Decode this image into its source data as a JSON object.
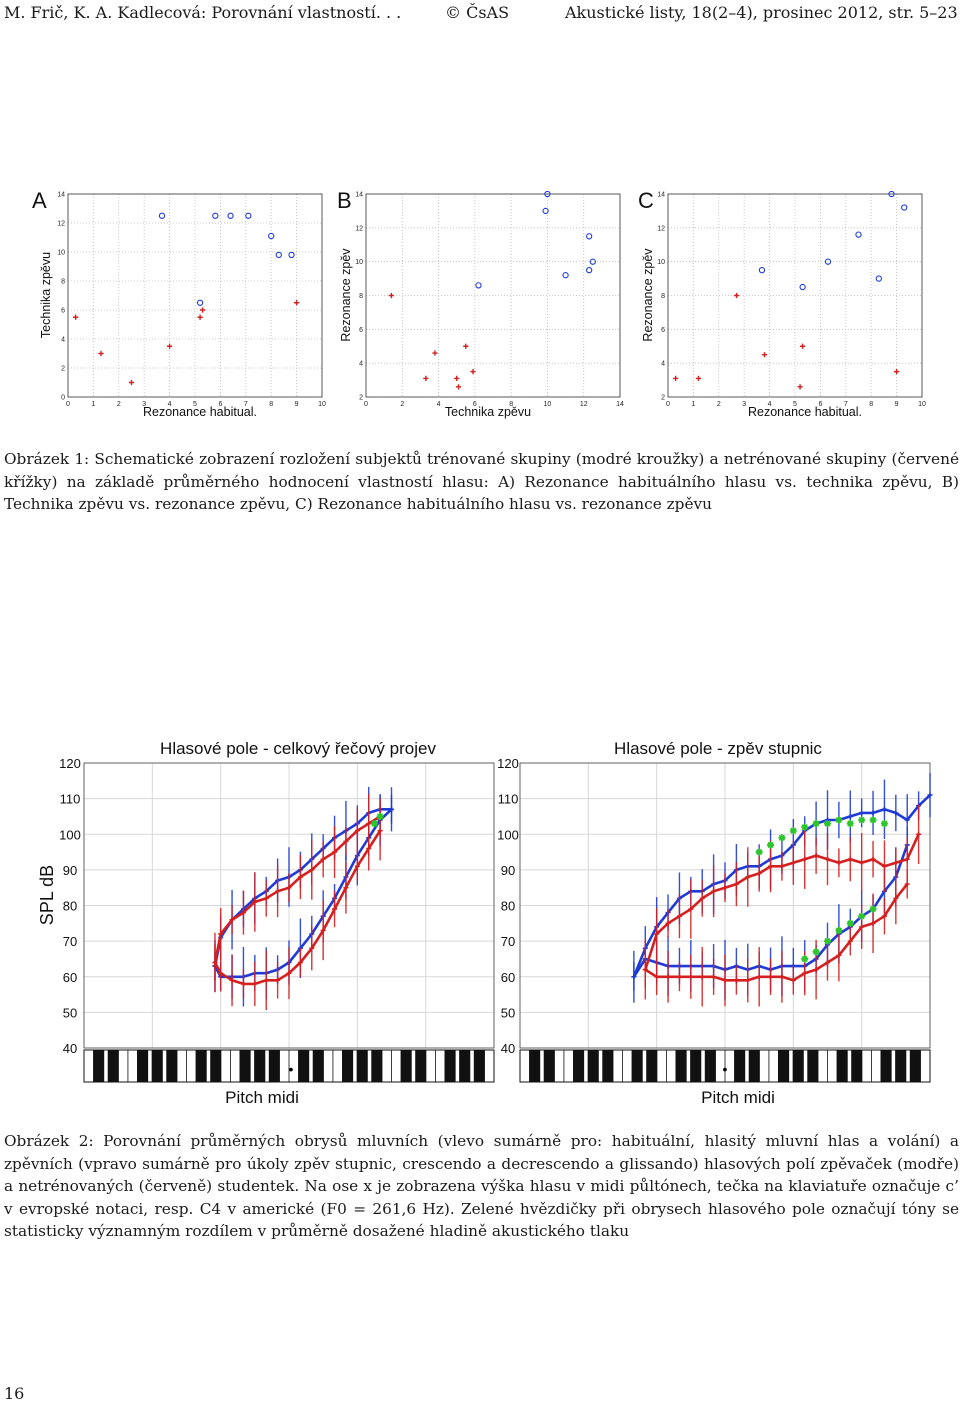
{
  "header": {
    "authors_title": "M. Frič, K. A. Kadlecová: Porovnání vlastností. . .",
    "copyright": "© ČsAS",
    "journal": "Akustické listy, 18(2–4), prosinec 2012, str. 5–23"
  },
  "figure1": {
    "colors": {
      "trained": "#1f3bd6",
      "untrained": "#d42020"
    },
    "caption": "Obrázek 1: Schematické zobrazení rozložení subjektů trénované skupiny (modré kroužky) a netrénované skupiny (červené křížky) na základě průměrného hodnocení vlastností hlasu: A) Rezonance habituálního hlasu vs. technika zpěvu, B) Technika zpěvu vs. rezonance zpěvu, C) Rezonance habituálního hlasu vs. rezonance zpěvu",
    "chart_data": [
      {
        "type": "scatter",
        "panel": "A",
        "xlabel": "Rezonance habitual.",
        "ylabel": "Technika zpěvu",
        "xlim": [
          0,
          10
        ],
        "ylim": [
          0,
          14
        ],
        "xticks": [
          "0",
          "1",
          "2",
          "3",
          "4",
          "5",
          "6",
          "7",
          "8",
          "9",
          "10"
        ],
        "yticks": [
          "0",
          "2",
          "4",
          "6",
          "8",
          "10",
          "12",
          "14"
        ],
        "series": [
          {
            "name": "trénovaní",
            "marker": "circle",
            "x": [
              3.7,
              6.4,
              5.2,
              8.0,
              8.3,
              8.8,
              7.1,
              5.8
            ],
            "y": [
              12.5,
              12.5,
              6.5,
              11.1,
              9.8,
              9.8,
              12.5,
              12.5
            ]
          },
          {
            "name": "netrénovaní",
            "marker": "cross",
            "x": [
              0.3,
              1.3,
              2.5,
              4.0,
              5.2,
              5.3,
              9.0
            ],
            "y": [
              5.5,
              3.0,
              1.0,
              3.5,
              5.5,
              6.0,
              6.5
            ]
          }
        ]
      },
      {
        "type": "scatter",
        "panel": "B",
        "xlabel": "Technika zpěvu",
        "ylabel": "Rezonance zpěv",
        "xlim": [
          0,
          14
        ],
        "ylim": [
          2,
          14
        ],
        "xticks": [
          "0",
          "2",
          "4",
          "6",
          "8",
          "10",
          "12",
          "14"
        ],
        "yticks": [
          "2",
          "4",
          "6",
          "8",
          "10",
          "12",
          "14"
        ],
        "series": [
          {
            "name": "trénovaní",
            "marker": "circle",
            "x": [
              10.0,
              9.9,
              6.2,
              11.0,
              12.3,
              12.5,
              12.3
            ],
            "y": [
              14.0,
              13.0,
              8.6,
              9.2,
              11.5,
              10.0,
              9.5
            ]
          },
          {
            "name": "netrénovaní",
            "marker": "cross",
            "x": [
              1.4,
              3.8,
              3.3,
              5.0,
              5.1,
              5.5,
              5.9
            ],
            "y": [
              8.0,
              4.6,
              3.1,
              3.1,
              2.6,
              5.0,
              3.5
            ]
          }
        ]
      },
      {
        "type": "scatter",
        "panel": "C",
        "xlabel": "Rezonance habitual.",
        "ylabel": "Rezonance zpěv",
        "xlim": [
          0,
          10
        ],
        "ylim": [
          2,
          14
        ],
        "xticks": [
          "0",
          "1",
          "2",
          "3",
          "4",
          "5",
          "6",
          "7",
          "8",
          "9",
          "10"
        ],
        "yticks": [
          "2",
          "4",
          "6",
          "8",
          "10",
          "12",
          "14"
        ],
        "series": [
          {
            "name": "trénovaní",
            "marker": "circle",
            "x": [
              8.8,
              9.3,
              7.5,
              6.3,
              5.3,
              3.7,
              8.3
            ],
            "y": [
              14.0,
              13.2,
              11.6,
              10.0,
              8.5,
              9.5,
              9.0
            ]
          },
          {
            "name": "netrénovaní",
            "marker": "cross",
            "x": [
              0.3,
              1.2,
              2.7,
              3.8,
              5.3,
              5.2,
              9.0
            ],
            "y": [
              3.1,
              3.1,
              8.0,
              4.5,
              5.0,
              2.6,
              3.5
            ]
          }
        ]
      }
    ]
  },
  "figure2": {
    "colors": {
      "trained": "#1f3bd6",
      "untrained": "#d42020",
      "significant": "#2ec42e"
    },
    "caption": "Obrázek 2: Porovnání průměrných obrysů mluvních (vlevo sumárně pro: habituální, hlasitý mluvní hlas a volání) a zpěvních (vpravo sumárně pro úkoly zpěv stupnic, crescendo a decrescendo a glissando) hlasových polí zpěvaček (modře) a netrénovaných (červeně) studentek. Na ose x je zobrazena výška hlasu v midi půltónech, tečka na klaviatuře označuje c’ v evropské notaci, resp. C4 v americké (F0 = 261,6 Hz). Zelené hvězdičky při obrysech hlasového pole označují tóny se statisticky významným rozdílem v průměrně dosažené hladině akustického tlaku",
    "chart_data": [
      {
        "type": "line",
        "title": "Hlasové pole - celkový řečový projev",
        "xlabel": "Pitch midi",
        "ylabel": "SPL dB",
        "ylim": [
          40,
          120
        ],
        "yticks": [
          "40",
          "50",
          "60",
          "70",
          "80",
          "90",
          "100",
          "110",
          "120"
        ],
        "xlim": [
          0,
          36
        ],
        "series": [
          {
            "name": "trénovaní – horní obrys",
            "x": [
              11.5,
              12,
              13,
              14,
              15,
              16,
              17,
              18,
              19,
              20,
              21,
              22,
              23,
              24,
              25,
              26,
              27
            ],
            "y": [
              63,
              71,
              76,
              79,
              82,
              84,
              87,
              88,
              90,
              93,
              96,
              99,
              101,
              103,
              106,
              107,
              107
            ]
          },
          {
            "name": "trénovaní – dolní obrys",
            "x": [
              11.5,
              12,
              13,
              14,
              15,
              16,
              17,
              18,
              19,
              20,
              21,
              22,
              23,
              24,
              25,
              26,
              27
            ],
            "y": [
              63,
              60,
              60,
              60,
              61,
              61,
              62,
              64,
              68,
              72,
              77,
              82,
              88,
              94,
              99,
              104,
              107
            ]
          },
          {
            "name": "netrénovaní – horní obrys",
            "x": [
              11.5,
              12,
              13,
              14,
              15,
              16,
              17,
              18,
              19,
              20,
              21,
              22,
              23,
              24,
              25,
              26
            ],
            "y": [
              64,
              72,
              76,
              78,
              81,
              82,
              84,
              85,
              88,
              90,
              93,
              95,
              98,
              101,
              103,
              105
            ]
          },
          {
            "name": "netrénovaní – dolní obrys",
            "x": [
              11.5,
              12,
              13,
              14,
              15,
              16,
              17,
              18,
              19,
              20,
              21,
              22,
              23,
              24,
              25,
              26
            ],
            "y": [
              64,
              61,
              59,
              58,
              58,
              59,
              59,
              61,
              64,
              68,
              73,
              79,
              85,
              91,
              96,
              101
            ]
          }
        ],
        "significant": {
          "x": [
            25.5,
            26
          ],
          "y": [
            103,
            105
          ]
        }
      },
      {
        "type": "line",
        "title": "Hlasové pole - zpěv stupnic",
        "xlabel": "Pitch midi",
        "ylabel": "",
        "ylim": [
          40,
          120
        ],
        "yticks": [
          "40",
          "50",
          "60",
          "70",
          "80",
          "90",
          "100",
          "110",
          "120"
        ],
        "xlim": [
          0,
          36
        ],
        "series": [
          {
            "name": "trénovaní – horní obrys",
            "x": [
              10,
              11,
              12,
              13,
              14,
              15,
              16,
              17,
              18,
              19,
              20,
              21,
              22,
              23,
              24,
              25,
              26,
              27,
              28,
              29,
              30,
              31,
              32,
              33,
              34,
              35,
              36
            ],
            "y": [
              60,
              68,
              74,
              78,
              82,
              84,
              84,
              86,
              87,
              90,
              91,
              91,
              93,
              94,
              97,
              101,
              103,
              104,
              104,
              105,
              106,
              106,
              107,
              106,
              104,
              108,
              111
            ]
          },
          {
            "name": "trénovaní – dolní obrys",
            "x": [
              10,
              11,
              12,
              13,
              14,
              15,
              16,
              17,
              18,
              19,
              20,
              21,
              22,
              23,
              24,
              25,
              26,
              27,
              28,
              29,
              30,
              31,
              32,
              33,
              34
            ],
            "y": [
              60,
              65,
              64,
              63,
              63,
              63,
              63,
              63,
              62,
              63,
              62,
              63,
              62,
              63,
              63,
              63,
              65,
              69,
              72,
              74,
              77,
              79,
              84,
              88,
              97
            ]
          },
          {
            "name": "netrénovaní – horní obrys",
            "x": [
              11,
              12,
              13,
              14,
              15,
              16,
              17,
              18,
              19,
              20,
              21,
              22,
              23,
              24,
              25,
              26,
              27,
              28,
              29,
              30,
              31,
              32,
              33,
              34,
              35
            ],
            "y": [
              62,
              72,
              75,
              77,
              79,
              82,
              84,
              85,
              86,
              88,
              89,
              91,
              91,
              92,
              93,
              94,
              93,
              92,
              93,
              92,
              93,
              91,
              92,
              93,
              100
            ]
          },
          {
            "name": "netrénovaní – dolní obrys",
            "x": [
              11,
              12,
              13,
              14,
              15,
              16,
              17,
              18,
              19,
              20,
              21,
              22,
              23,
              24,
              25,
              26,
              27,
              28,
              29,
              30,
              31,
              32,
              33,
              34
            ],
            "y": [
              62,
              60,
              60,
              60,
              60,
              60,
              60,
              59,
              59,
              59,
              60,
              60,
              60,
              59,
              61,
              62,
              64,
              66,
              70,
              74,
              75,
              77,
              82,
              86
            ]
          }
        ],
        "significant": {
          "x": [
            21,
            22,
            23,
            24,
            25,
            26,
            27,
            28,
            29,
            30,
            31,
            32,
            25,
            26,
            27,
            28,
            29,
            30,
            31
          ],
          "y": [
            95,
            97,
            99,
            101,
            102,
            103,
            103,
            104,
            103,
            104,
            104,
            103,
            65,
            67,
            70,
            73,
            75,
            77,
            79
          ]
        }
      }
    ],
    "keyboard_marker": "•"
  },
  "page_number": "16"
}
